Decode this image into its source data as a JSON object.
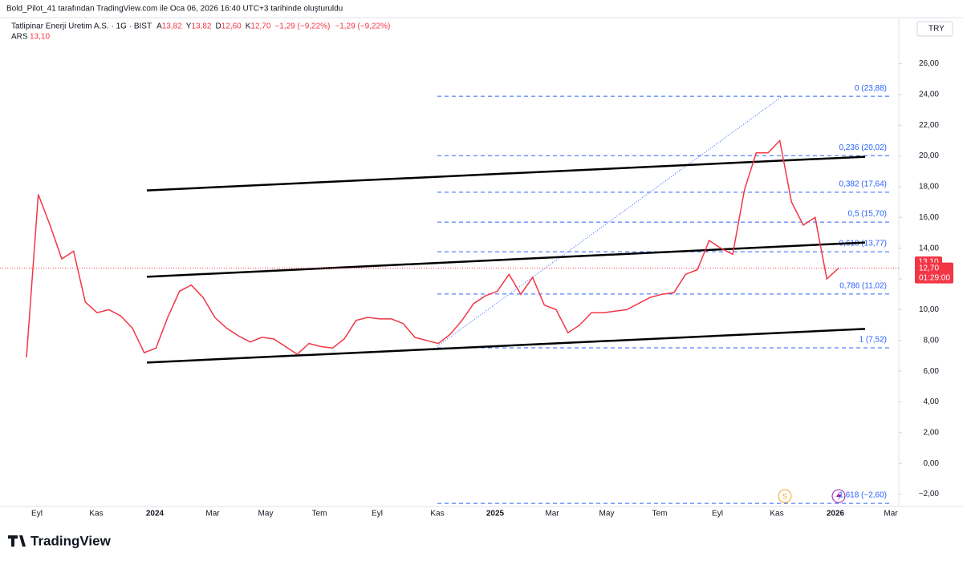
{
  "chart_data": {
    "type": "line",
    "credit": "Bold_Pilot_41 tarafından TradingView.com ile Oca 06, 2026 16:40 UTC+3 tarihinde oluşturuldu",
    "symbol": "Tatlipinar Enerji Uretim A.S. · 1G · BIST",
    "ohlc": [
      {
        "key": "A",
        "value": "13,82"
      },
      {
        "key": "Y",
        "value": "13,82"
      },
      {
        "key": "D",
        "value": "12,60"
      },
      {
        "key": "K",
        "value": "12,70"
      }
    ],
    "change": "−1,29 (−9,22%)",
    "change_pct": "−1,29 (−9,22%)",
    "currency": "TRY",
    "brand": "TradingView",
    "series": [
      {
        "name": "ARS",
        "color": "#f23645",
        "value_label": "13,10",
        "values": [
          6.9,
          17.5,
          15.5,
          13.3,
          13.8,
          10.5,
          9.8,
          10.0,
          9.6,
          8.8,
          7.2,
          7.5,
          9.5,
          11.2,
          11.6,
          10.8,
          9.5,
          8.8,
          8.3,
          7.9,
          8.2,
          8.1,
          7.6,
          7.1,
          7.8,
          7.6,
          7.5,
          8.1,
          9.3,
          9.5,
          9.4,
          9.4,
          9.1,
          8.2,
          8.0,
          7.8,
          8.4,
          9.3,
          10.4,
          10.9,
          11.2,
          12.3,
          11.0,
          12.1,
          10.3,
          10.0,
          8.5,
          9.0,
          9.8,
          9.8,
          9.9,
          10.0,
          10.4,
          10.8,
          11.0,
          11.1,
          12.3,
          12.6,
          14.5,
          14.0,
          13.6,
          17.8,
          20.2,
          20.2,
          21.0,
          17.0,
          15.5,
          16.0,
          12.0,
          12.7
        ]
      }
    ],
    "ars_tag": {
      "value": 13.1,
      "label": "13,10"
    },
    "last_price": {
      "value": 12.7,
      "label": "12,70"
    },
    "countdown": "01:29:00",
    "ylim": [
      -2.7,
      27.8
    ],
    "yticks": [
      {
        "value": -2,
        "label": "−2,00"
      },
      {
        "value": 0,
        "label": "0,00"
      },
      {
        "value": 2,
        "label": "2,00"
      },
      {
        "value": 4,
        "label": "4,00"
      },
      {
        "value": 6,
        "label": "6,00"
      },
      {
        "value": 8,
        "label": "8,00"
      },
      {
        "value": 10,
        "label": "10,00"
      },
      {
        "value": 12,
        "label": "12,00"
      },
      {
        "value": 14,
        "label": "14,00"
      },
      {
        "value": 16,
        "label": "16,00"
      },
      {
        "value": 18,
        "label": "18,00"
      },
      {
        "value": 20,
        "label": "20,00"
      },
      {
        "value": 22,
        "label": "22,00"
      },
      {
        "value": 24,
        "label": "24,00"
      },
      {
        "value": 26,
        "label": "26,00"
      }
    ],
    "xtick_labels": [
      "Eyl",
      "Kas",
      "2024",
      "Mar",
      "May",
      "Tem",
      "Eyl",
      "Kas",
      "2025",
      "Mar",
      "May",
      "Tem",
      "Eyl",
      "Kas",
      "2026",
      "Mar"
    ],
    "fib_levels": [
      {
        "value": 23.88,
        "label": "0 (23,88)"
      },
      {
        "value": 20.02,
        "label": "0,236 (20,02)"
      },
      {
        "value": 17.64,
        "label": "0,382 (17,64)"
      },
      {
        "value": 15.7,
        "label": "0,5 (15,70)"
      },
      {
        "value": 13.77,
        "label": "0,618 (13,77)"
      },
      {
        "value": 11.02,
        "label": "0,786 (11,02)"
      },
      {
        "value": 7.52,
        "label": "1 (7,52)"
      },
      {
        "value": -2.6,
        "label": "1,618 (−2,60)"
      }
    ],
    "channel_lines": [
      {
        "from": 17.76,
        "to": 19.95
      },
      {
        "from": 12.14,
        "to": 14.37
      },
      {
        "from": 6.56,
        "to": 8.75
      }
    ]
  }
}
